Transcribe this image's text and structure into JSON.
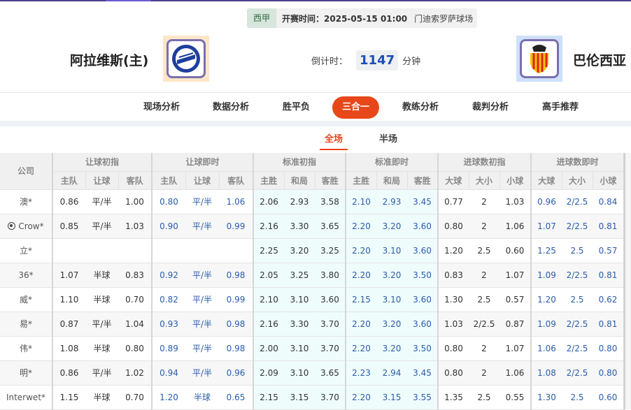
{
  "match": {
    "league": "西甲",
    "kickoff": "开赛时间：2025-05-15 01:00",
    "venue": "门迪索罗萨球场",
    "home_team": "阿拉维斯(主)",
    "away_team": "巴伦西亚",
    "countdown_label": "倒计时：",
    "countdown_value": "1147",
    "countdown_unit": "分钟"
  },
  "nav": {
    "items": [
      "现场分析",
      "数据分析",
      "胜平负",
      "三合一",
      "教练分析",
      "裁判分析",
      "高手推荐"
    ],
    "active": "三合一"
  },
  "subtabs": {
    "items": [
      "全场",
      "半场"
    ],
    "active": "全场"
  },
  "colors": {
    "accent": "#e8471a",
    "live_value": "#2a5caa",
    "header_bar": "#4b3f8f"
  },
  "table": {
    "company_header": "公司",
    "groups": [
      "让球初指",
      "让球即时",
      "标准初指",
      "标准即时",
      "进球数初指",
      "进球数即时"
    ],
    "subheaders": [
      "主队",
      "让球",
      "客队",
      "主队",
      "让球",
      "客队",
      "主胜",
      "和局",
      "客胜",
      "主胜",
      "和局",
      "客胜",
      "大球",
      "大小",
      "小球",
      "大球",
      "大小",
      "小球"
    ],
    "rows": [
      {
        "company": "澳*",
        "icon": "",
        "values": [
          "0.86",
          "平/半",
          "1.00",
          "0.80",
          "平/半",
          "1.06",
          "2.06",
          "2.93",
          "3.58",
          "2.10",
          "2.93",
          "3.45",
          "0.77",
          "2",
          "1.03",
          "0.96",
          "2/2.5",
          "0.84"
        ]
      },
      {
        "company": "Crow*",
        "icon": "soccer-ball-icon",
        "values": [
          "0.85",
          "平/半",
          "1.03",
          "0.90",
          "平/半",
          "0.99",
          "2.16",
          "3.30",
          "3.65",
          "2.20",
          "3.20",
          "3.60",
          "0.80",
          "2",
          "1.06",
          "1.07",
          "2/2.5",
          "0.81"
        ]
      },
      {
        "company": "立*",
        "icon": "",
        "values": [
          "",
          "",
          "",
          "",
          "",
          "",
          "2.25",
          "3.20",
          "3.25",
          "2.20",
          "3.10",
          "3.60",
          "1.20",
          "2.5",
          "0.60",
          "1.25",
          "2.5",
          "0.57"
        ]
      },
      {
        "company": "36*",
        "icon": "",
        "values": [
          "1.07",
          "半球",
          "0.83",
          "0.92",
          "平/半",
          "0.98",
          "2.05",
          "3.25",
          "3.80",
          "2.20",
          "3.20",
          "3.50",
          "0.83",
          "2",
          "1.07",
          "1.09",
          "2/2.5",
          "0.81"
        ]
      },
      {
        "company": "威*",
        "icon": "",
        "values": [
          "1.10",
          "半球",
          "0.70",
          "0.82",
          "平/半",
          "0.99",
          "2.10",
          "3.10",
          "3.60",
          "2.15",
          "3.10",
          "3.60",
          "1.30",
          "2.5",
          "0.57",
          "1.20",
          "2.5",
          "0.62"
        ]
      },
      {
        "company": "易*",
        "icon": "",
        "values": [
          "0.87",
          "平/半",
          "1.04",
          "0.93",
          "平/半",
          "0.98",
          "2.16",
          "3.30",
          "3.70",
          "2.20",
          "3.20",
          "3.60",
          "1.03",
          "2/2.5",
          "0.87",
          "1.09",
          "2/2.5",
          "0.81"
        ]
      },
      {
        "company": "伟*",
        "icon": "",
        "values": [
          "1.08",
          "半球",
          "0.80",
          "0.89",
          "平/半",
          "0.98",
          "2.00",
          "3.10",
          "3.70",
          "2.20",
          "3.20",
          "3.50",
          "0.80",
          "2",
          "1.07",
          "1.06",
          "2/2.5",
          "0.80"
        ]
      },
      {
        "company": "明*",
        "icon": "",
        "values": [
          "0.86",
          "平/半",
          "1.02",
          "0.94",
          "平/半",
          "0.96",
          "2.09",
          "3.10",
          "3.65",
          "2.23",
          "2.94",
          "3.45",
          "0.80",
          "2",
          "1.06",
          "1.08",
          "2/2.5",
          "0.80"
        ]
      },
      {
        "company": "Interwet*",
        "icon": "",
        "values": [
          "1.15",
          "半球",
          "0.70",
          "1.20",
          "半球",
          "0.65",
          "2.15",
          "3.15",
          "3.70",
          "2.20",
          "3.15",
          "3.55",
          "1.35",
          "2.5",
          "0.55",
          "1.30",
          "2.5",
          "0.60"
        ]
      }
    ]
  }
}
